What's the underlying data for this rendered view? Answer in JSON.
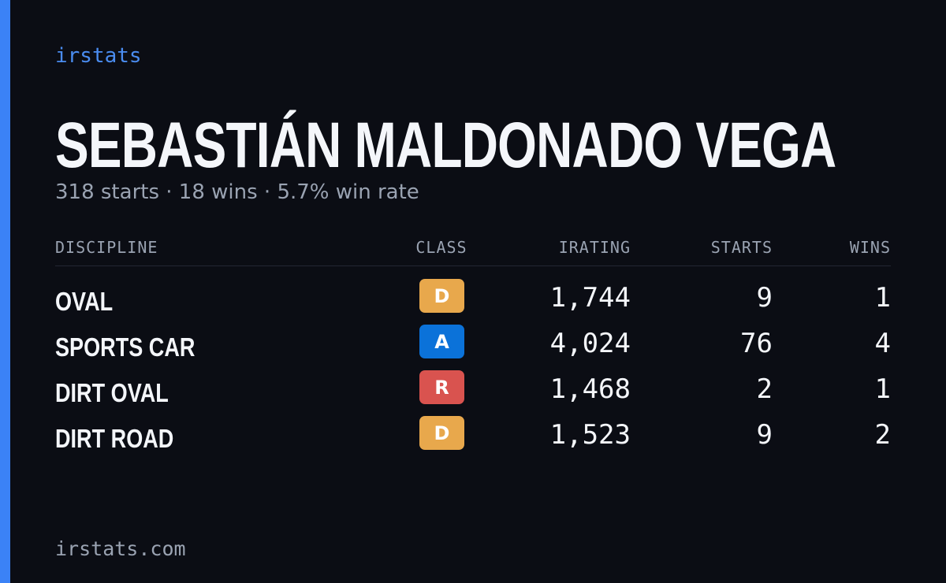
{
  "brand": "irstats",
  "name": "SEBASTIÁN MALDONADO VEGA",
  "summary": "318 starts · 18 wins · 5.7% win rate",
  "table": {
    "headers": [
      "DISCIPLINE",
      "CLASS",
      "IRATING",
      "STARTS",
      "WINS"
    ],
    "rows": [
      {
        "discipline": "OVAL",
        "class": "D",
        "class_color": "#e8a84c",
        "irating": "1,744",
        "starts": "9",
        "wins": "1"
      },
      {
        "discipline": "SPORTS CAR",
        "class": "A",
        "class_color": "#0b72d9",
        "irating": "4,024",
        "starts": "76",
        "wins": "4"
      },
      {
        "discipline": "DIRT OVAL",
        "class": "R",
        "class_color": "#d9534f",
        "irating": "1,468",
        "starts": "2",
        "wins": "1"
      },
      {
        "discipline": "DIRT ROAD",
        "class": "D",
        "class_color": "#e8a84c",
        "irating": "1,523",
        "starts": "9",
        "wins": "2"
      }
    ]
  },
  "footer": "irstats.com"
}
